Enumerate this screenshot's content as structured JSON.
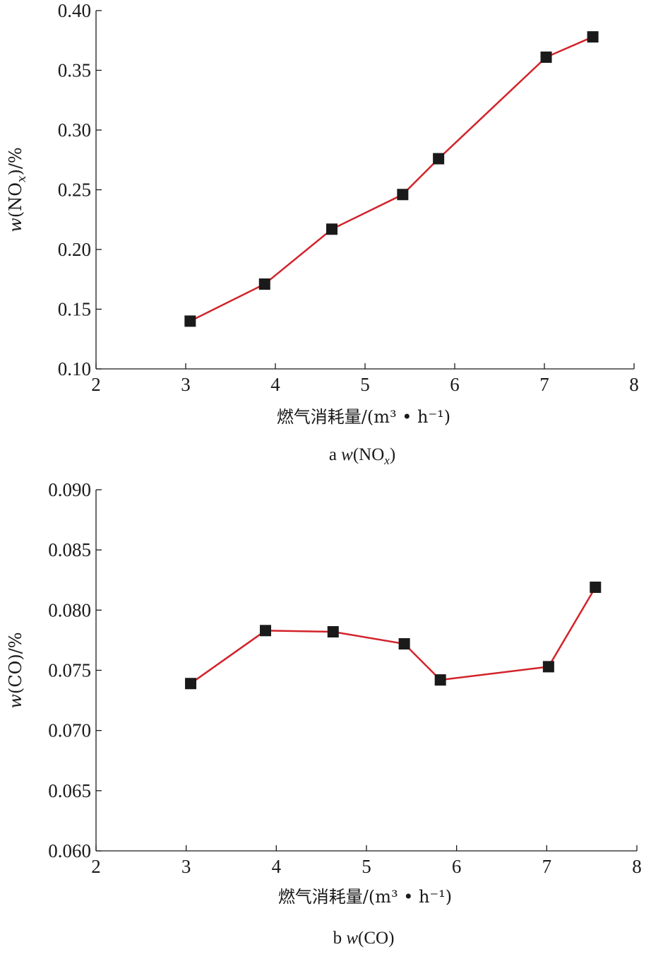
{
  "chart_data": [
    {
      "type": "line",
      "caption": {
        "prefix": "a",
        "w": "w",
        "open": "(NO",
        "sub": "x",
        "close": ")"
      },
      "xlabel": "燃气消耗量/(m³ • h⁻¹)",
      "ylabel": {
        "w": "w",
        "open": "(NO",
        "sub": "x",
        "close": ")/%"
      },
      "xlim": [
        2,
        8
      ],
      "ylim": [
        0.1,
        0.4
      ],
      "xticks": [
        "2",
        "3",
        "4",
        "5",
        "6",
        "7",
        "8"
      ],
      "yticks": [
        "0.10",
        "0.15",
        "0.20",
        "0.25",
        "0.30",
        "0.35",
        "0.40"
      ],
      "line_color": "#d2232a",
      "marker": "square",
      "marker_color": "#1a1a1a",
      "x": [
        3.05,
        3.88,
        4.63,
        5.42,
        5.82,
        7.02,
        7.54
      ],
      "y": [
        0.14,
        0.171,
        0.217,
        0.246,
        0.276,
        0.361,
        0.378
      ]
    },
    {
      "type": "line",
      "caption": {
        "prefix": "b",
        "w": "w",
        "open": "(CO)",
        "sub": "",
        "close": ""
      },
      "xlabel": "燃气消耗量/(m³ • h⁻¹)",
      "ylabel": {
        "w": "w",
        "open": "(CO)/%",
        "sub": "",
        "close": ""
      },
      "xlim": [
        2,
        8
      ],
      "ylim": [
        0.06,
        0.09
      ],
      "xticks": [
        "2",
        "3",
        "4",
        "5",
        "6",
        "7",
        "8"
      ],
      "yticks": [
        "0.060",
        "0.065",
        "0.070",
        "0.075",
        "0.080",
        "0.085",
        "0.090"
      ],
      "line_color": "#d2232a",
      "marker": "square",
      "marker_color": "#1a1a1a",
      "x": [
        3.05,
        3.88,
        4.63,
        5.42,
        5.82,
        7.02,
        7.54
      ],
      "y": [
        0.0739,
        0.0783,
        0.0782,
        0.0772,
        0.0742,
        0.0753,
        0.0819
      ]
    }
  ]
}
